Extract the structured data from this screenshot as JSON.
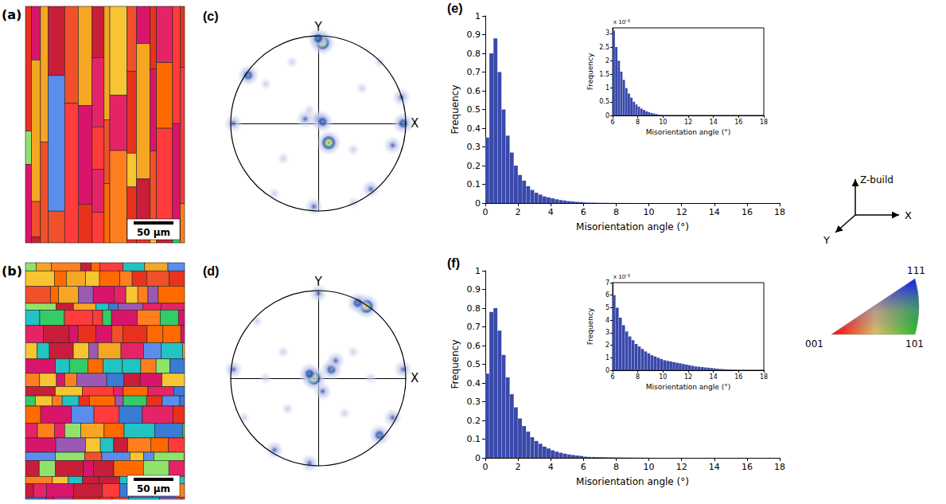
{
  "chart_data": [
    {
      "type": "scatter",
      "title": "(c)",
      "xlabel": "X",
      "ylabel": "Y",
      "xlim": [
        -1,
        1
      ],
      "ylim": [
        -1,
        1
      ],
      "tick_labels": false,
      "x": [
        0,
        -0.1,
        0.12,
        0.05,
        -0.15,
        0.05,
        0.0,
        -0.05,
        0.4,
        0.6,
        0.95,
        0.97,
        0.85,
        -0.97,
        -0.8,
        -0.5,
        -0.6,
        0.5,
        0.4,
        -0.4,
        0.7,
        -0.3
      ],
      "y": [
        0.05,
        0.15,
        -0.22,
        0.02,
        0.05,
        0.92,
        0.97,
        -0.95,
        -0.9,
        -0.75,
        0.3,
        0.0,
        -0.25,
        0.0,
        0.55,
        -0.8,
        0.45,
        0.4,
        -0.3,
        -0.4,
        0.7,
        0.7
      ],
      "intensity": [
        2,
        1,
        5,
        3,
        2,
        5,
        3,
        2,
        1,
        2,
        2,
        3,
        2,
        2,
        3,
        1,
        1,
        1,
        1,
        1,
        1,
        1
      ]
    },
    {
      "type": "scatter",
      "title": "(d)",
      "xlabel": "X",
      "ylabel": "Y",
      "xlim": [
        -1,
        1
      ],
      "ylim": [
        -1,
        1
      ],
      "tick_labels": false,
      "x": [
        -0.05,
        -0.1,
        0.15,
        0.05,
        0.2,
        0.55,
        0.45,
        0.0,
        0.7,
        0.85,
        -0.1,
        -0.5,
        -0.97,
        -0.85,
        -0.7,
        0.97,
        0.4,
        -0.4,
        0.3,
        -0.35,
        0.6,
        -0.6
      ],
      "y": [
        0.0,
        0.05,
        0.1,
        -0.15,
        0.2,
        0.82,
        0.86,
        0.97,
        -0.65,
        -0.45,
        -0.97,
        -0.82,
        0.1,
        -0.45,
        0.65,
        0.1,
        0.3,
        0.3,
        -0.4,
        -0.35,
        0.0,
        0.0
      ],
      "intensity": [
        5,
        3,
        3,
        2,
        2,
        5,
        3,
        2,
        3,
        2,
        2,
        2,
        2,
        1,
        1,
        2,
        1,
        1,
        1,
        1,
        1,
        1
      ]
    },
    {
      "type": "histogram",
      "title": "(e)",
      "xlabel": "Misorientation angle (°)",
      "ylabel": "Frequency",
      "color": "#3949ab",
      "xlim": [
        0,
        18
      ],
      "xticks": [
        0,
        2,
        4,
        6,
        8,
        10,
        12,
        14,
        16,
        18
      ],
      "ylim": [
        0,
        1
      ],
      "yticks": [
        0,
        0.1,
        0.2,
        0.3,
        0.4,
        0.5,
        0.6,
        0.7,
        0.8,
        0.9,
        1
      ],
      "bins": [
        0,
        0.25,
        0.5,
        0.75,
        1,
        1.25,
        1.5,
        1.75,
        2,
        2.25,
        2.5,
        2.75,
        3,
        3.25,
        3.5,
        3.75,
        4,
        4.25,
        4.5,
        4.75,
        5,
        5.25,
        5.5,
        5.75,
        6,
        6.25,
        6.5,
        6.75,
        7,
        7.25,
        7.5,
        7.75,
        8,
        8.25,
        8.5,
        8.75,
        9,
        9.25,
        9.5,
        9.75,
        10
      ],
      "values": [
        0.35,
        0.8,
        0.88,
        0.7,
        0.5,
        0.36,
        0.27,
        0.2,
        0.15,
        0.12,
        0.09,
        0.07,
        0.055,
        0.045,
        0.035,
        0.03,
        0.025,
        0.02,
        0.016,
        0.013,
        0.01,
        0.008,
        0.006,
        0.005,
        0.003,
        0.0025,
        0.002,
        0.0015,
        0.001,
        0.0008,
        0.0006,
        0.0005,
        0.0004,
        0.0003,
        0.0002,
        0.0002,
        0.0001,
        0.0001,
        0.0001,
        0.0001
      ],
      "inset": {
        "type": "histogram",
        "xlabel": "Misorientation angle (°)",
        "ylabel": "Frequency",
        "annotations": [
          "x 10⁻³"
        ],
        "color": "#3949ab",
        "xlim": [
          6,
          18
        ],
        "xticks": [
          6,
          8,
          10,
          12,
          14,
          16,
          18
        ],
        "ylim": [
          0,
          3.2
        ],
        "yticks": [
          0,
          0.5,
          1,
          1.5,
          2,
          2.5,
          3
        ],
        "bins": [
          6,
          6.2,
          6.4,
          6.6,
          6.8,
          7,
          7.2,
          7.4,
          7.6,
          7.8,
          8,
          8.2,
          8.4,
          8.6,
          8.8,
          9,
          9.2,
          9.4,
          9.6,
          9.8,
          10
        ],
        "values": [
          3.1,
          2.5,
          2.0,
          1.6,
          1.3,
          1.0,
          0.8,
          0.65,
          0.5,
          0.4,
          0.32,
          0.25,
          0.2,
          0.15,
          0.12,
          0.09,
          0.07,
          0.05,
          0.03,
          0.02
        ]
      }
    },
    {
      "type": "histogram",
      "title": "(f)",
      "xlabel": "Misorientation angle (°)",
      "ylabel": "Frequency",
      "color": "#3949ab",
      "xlim": [
        0,
        18
      ],
      "xticks": [
        0,
        2,
        4,
        6,
        8,
        10,
        12,
        14,
        16,
        18
      ],
      "ylim": [
        0,
        1
      ],
      "yticks": [
        0,
        0.1,
        0.2,
        0.3,
        0.4,
        0.5,
        0.6,
        0.7,
        0.8,
        0.9,
        1
      ],
      "bins": [
        0,
        0.25,
        0.5,
        0.75,
        1,
        1.25,
        1.5,
        1.75,
        2,
        2.25,
        2.5,
        2.75,
        3,
        3.25,
        3.5,
        3.75,
        4,
        4.25,
        4.5,
        4.75,
        5,
        5.25,
        5.5,
        5.75,
        6,
        6.25,
        6.5,
        6.75,
        7,
        7.25,
        7.5,
        7.75,
        8,
        8.25,
        8.5,
        8.75,
        9,
        9.25,
        9.5,
        9.75,
        10
      ],
      "values": [
        0.45,
        0.78,
        0.8,
        0.68,
        0.55,
        0.43,
        0.34,
        0.27,
        0.21,
        0.17,
        0.14,
        0.11,
        0.09,
        0.075,
        0.06,
        0.05,
        0.04,
        0.033,
        0.027,
        0.022,
        0.018,
        0.015,
        0.012,
        0.01,
        0.006,
        0.005,
        0.0045,
        0.004,
        0.0035,
        0.003,
        0.0027,
        0.0024,
        0.002,
        0.0018,
        0.0016,
        0.0014,
        0.0012,
        0.001,
        0.0009,
        0.0008
      ],
      "inset": {
        "type": "histogram",
        "xlabel": "Misorientation angle (°)",
        "ylabel": "Frequency",
        "annotations": [
          "x 10⁻³"
        ],
        "color": "#3949ab",
        "xlim": [
          6,
          18
        ],
        "xticks": [
          6,
          8,
          10,
          12,
          14,
          16,
          18
        ],
        "ylim": [
          0,
          7
        ],
        "yticks": [
          0,
          1,
          2,
          3,
          4,
          5,
          6,
          7
        ],
        "bins": [
          6,
          6.25,
          6.5,
          6.75,
          7,
          7.25,
          7.5,
          7.75,
          8,
          8.25,
          8.5,
          8.75,
          9,
          9.25,
          9.5,
          9.75,
          10,
          10.25,
          10.5,
          10.75,
          11,
          11.25,
          11.5,
          11.75,
          12,
          12.25,
          12.5,
          12.75,
          13,
          13.25,
          13.5,
          13.75,
          14,
          14.25,
          14.5,
          14.75,
          15,
          15.25,
          15.5,
          15.75,
          16
        ],
        "values": [
          6,
          5,
          4.2,
          3.6,
          3.1,
          2.7,
          2.4,
          2.1,
          1.9,
          1.7,
          1.5,
          1.35,
          1.2,
          1.1,
          1.0,
          0.9,
          0.8,
          0.75,
          0.7,
          0.65,
          0.6,
          0.55,
          0.5,
          0.45,
          0.4,
          0.35,
          0.3,
          0.28,
          0.25,
          0.22,
          0.2,
          0.18,
          0.15,
          0.12,
          0.1,
          0.08,
          0.06,
          0.05,
          0.03,
          0.02
        ]
      }
    }
  ],
  "ebsd_maps": [
    {
      "title": "(a)",
      "scale_bar": "50 µm"
    },
    {
      "title": "(b)",
      "scale_bar": "50 µm"
    }
  ],
  "axes_key": {
    "labels": [
      "Z-build",
      "X",
      "Y"
    ]
  },
  "ipf_key": {
    "labels": [
      "001",
      "101",
      "111"
    ]
  }
}
